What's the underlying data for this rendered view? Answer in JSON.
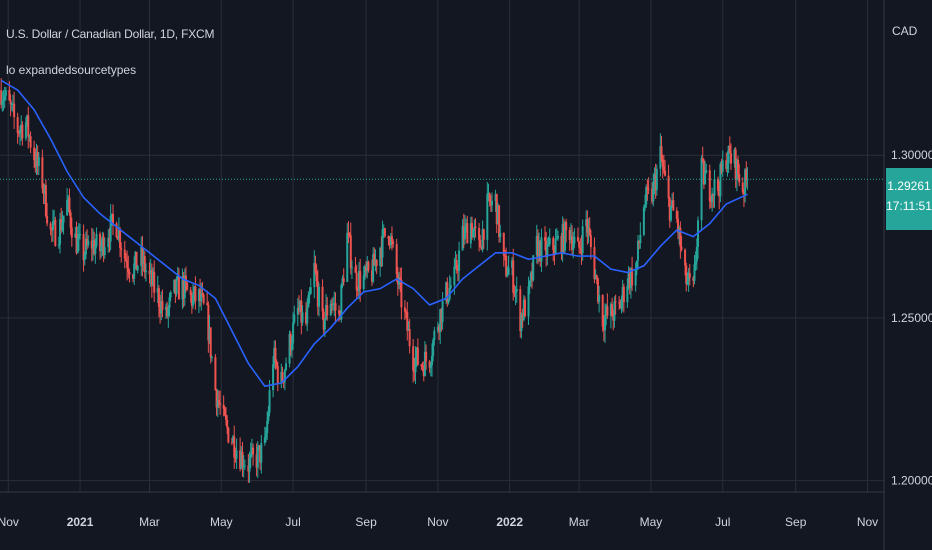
{
  "header": {
    "symbol_title": "U.S. Dollar / Canadian Dollar, 1D, FXCM",
    "indicator_label": "lo expandedsourcetypes",
    "currency": "CAD"
  },
  "last_price": {
    "price": "1.29261",
    "countdown": "17:11:51"
  },
  "colors": {
    "background": "#131722",
    "up": "#26a69a",
    "down": "#ef5350",
    "ma": "#2962ff",
    "grid": "#2a2e39",
    "text": "#d1d4dc"
  },
  "chart_data": {
    "type": "candlestick",
    "symbol": "USDCAD",
    "timeframe": "1D",
    "ylim": [
      1.1965,
      1.3477
    ],
    "y_ticks": [
      "1.30000",
      "1.25000",
      "1.20000"
    ],
    "x_ticks": [
      "Nov",
      "2021",
      "Mar",
      "May",
      "Jul",
      "Sep",
      "Nov",
      "2022",
      "Mar",
      "May",
      "Jul",
      "Sep",
      "Nov"
    ],
    "x_tick_dates": [
      "2020-11-01",
      "2021-01-01",
      "2021-03-01",
      "2021-05-01",
      "2021-07-01",
      "2021-09-01",
      "2021-11-01",
      "2022-01-01",
      "2022-03-01",
      "2022-05-01",
      "2022-07-01",
      "2022-09-01",
      "2022-11-01"
    ],
    "xlim": [
      "2020-10-25",
      "2022-11-15"
    ],
    "last_price": 1.29261,
    "close_path": [
      [
        "2020-10-26",
        1.32
      ],
      [
        "2020-11-02",
        1.315
      ],
      [
        "2020-11-09",
        1.308
      ],
      [
        "2020-11-16",
        1.31
      ],
      [
        "2020-11-23",
        1.3
      ],
      [
        "2020-11-30",
        1.292
      ],
      [
        "2020-12-07",
        1.276
      ],
      [
        "2020-12-14",
        1.277
      ],
      [
        "2020-12-21",
        1.285
      ],
      [
        "2020-12-28",
        1.274
      ],
      [
        "2021-01-04",
        1.27
      ],
      [
        "2021-01-11",
        1.273
      ],
      [
        "2021-01-18",
        1.271
      ],
      [
        "2021-01-25",
        1.277
      ],
      [
        "2021-02-01",
        1.279
      ],
      [
        "2021-02-08",
        1.269
      ],
      [
        "2021-02-15",
        1.265
      ],
      [
        "2021-02-22",
        1.268
      ],
      [
        "2021-03-01",
        1.262
      ],
      [
        "2021-03-08",
        1.257
      ],
      [
        "2021-03-15",
        1.25
      ],
      [
        "2021-03-22",
        1.258
      ],
      [
        "2021-03-29",
        1.26
      ],
      [
        "2021-04-05",
        1.256
      ],
      [
        "2021-04-12",
        1.256
      ],
      [
        "2021-04-19",
        1.25
      ],
      [
        "2021-04-26",
        1.228
      ],
      [
        "2021-05-03",
        1.218
      ],
      [
        "2021-05-10",
        1.213
      ],
      [
        "2021-05-17",
        1.208
      ],
      [
        "2021-05-24",
        1.205
      ],
      [
        "2021-05-31",
        1.207
      ],
      [
        "2021-06-07",
        1.21
      ],
      [
        "2021-06-14",
        1.238
      ],
      [
        "2021-06-21",
        1.23
      ],
      [
        "2021-06-28",
        1.242
      ],
      [
        "2021-07-05",
        1.252
      ],
      [
        "2021-07-12",
        1.248
      ],
      [
        "2021-07-19",
        1.265
      ],
      [
        "2021-07-26",
        1.248
      ],
      [
        "2021-08-02",
        1.256
      ],
      [
        "2021-08-09",
        1.25
      ],
      [
        "2021-08-16",
        1.275
      ],
      [
        "2021-08-23",
        1.262
      ],
      [
        "2021-08-30",
        1.262
      ],
      [
        "2021-09-06",
        1.264
      ],
      [
        "2021-09-13",
        1.272
      ],
      [
        "2021-09-20",
        1.278
      ],
      [
        "2021-09-27",
        1.263
      ],
      [
        "2021-10-04",
        1.25
      ],
      [
        "2021-10-11",
        1.238
      ],
      [
        "2021-10-18",
        1.236
      ],
      [
        "2021-10-25",
        1.238
      ],
      [
        "2021-11-01",
        1.249
      ],
      [
        "2021-11-08",
        1.257
      ],
      [
        "2021-11-15",
        1.262
      ],
      [
        "2021-11-22",
        1.275
      ],
      [
        "2021-11-29",
        1.279
      ],
      [
        "2021-12-06",
        1.271
      ],
      [
        "2021-12-13",
        1.284
      ],
      [
        "2021-12-20",
        1.286
      ],
      [
        "2021-12-27",
        1.266
      ],
      [
        "2022-01-03",
        1.264
      ],
      [
        "2022-01-10",
        1.25
      ],
      [
        "2022-01-17",
        1.256
      ],
      [
        "2022-01-24",
        1.272
      ],
      [
        "2022-01-31",
        1.27
      ],
      [
        "2022-02-07",
        1.272
      ],
      [
        "2022-02-14",
        1.274
      ],
      [
        "2022-02-21",
        1.277
      ],
      [
        "2022-02-28",
        1.27
      ],
      [
        "2022-03-07",
        1.28
      ],
      [
        "2022-03-14",
        1.265
      ],
      [
        "2022-03-21",
        1.25
      ],
      [
        "2022-03-28",
        1.251
      ],
      [
        "2022-04-04",
        1.253
      ],
      [
        "2022-04-11",
        1.262
      ],
      [
        "2022-04-18",
        1.264
      ],
      [
        "2022-04-25",
        1.285
      ],
      [
        "2022-05-02",
        1.288
      ],
      [
        "2022-05-09",
        1.3
      ],
      [
        "2022-05-16",
        1.285
      ],
      [
        "2022-05-23",
        1.28
      ],
      [
        "2022-05-30",
        1.262
      ],
      [
        "2022-06-06",
        1.258
      ],
      [
        "2022-06-13",
        1.295
      ],
      [
        "2022-06-20",
        1.29
      ],
      [
        "2022-06-27",
        1.29
      ],
      [
        "2022-07-04",
        1.3
      ],
      [
        "2022-07-11",
        1.298
      ],
      [
        "2022-07-18",
        1.29
      ],
      [
        "2022-07-22",
        1.2926
      ]
    ],
    "ma_path": [
      [
        "2020-10-26",
        1.323
      ],
      [
        "2020-11-09",
        1.32
      ],
      [
        "2020-11-23",
        1.314
      ],
      [
        "2020-12-07",
        1.305
      ],
      [
        "2020-12-21",
        1.295
      ],
      [
        "2021-01-04",
        1.287
      ],
      [
        "2021-01-18",
        1.282
      ],
      [
        "2021-02-01",
        1.278
      ],
      [
        "2021-02-15",
        1.274
      ],
      [
        "2021-03-01",
        1.27
      ],
      [
        "2021-03-15",
        1.266
      ],
      [
        "2021-03-29",
        1.262
      ],
      [
        "2021-04-12",
        1.26
      ],
      [
        "2021-04-26",
        1.256
      ],
      [
        "2021-05-10",
        1.246
      ],
      [
        "2021-05-24",
        1.236
      ],
      [
        "2021-06-07",
        1.229
      ],
      [
        "2021-06-21",
        1.23
      ],
      [
        "2021-07-05",
        1.235
      ],
      [
        "2021-07-19",
        1.242
      ],
      [
        "2021-08-02",
        1.247
      ],
      [
        "2021-08-16",
        1.253
      ],
      [
        "2021-08-30",
        1.258
      ],
      [
        "2021-09-13",
        1.259
      ],
      [
        "2021-09-27",
        1.262
      ],
      [
        "2021-10-11",
        1.259
      ],
      [
        "2021-10-25",
        1.254
      ],
      [
        "2021-11-08",
        1.256
      ],
      [
        "2021-11-22",
        1.262
      ],
      [
        "2021-12-06",
        1.266
      ],
      [
        "2021-12-20",
        1.27
      ],
      [
        "2022-01-03",
        1.27
      ],
      [
        "2022-01-17",
        1.268
      ],
      [
        "2022-01-31",
        1.269
      ],
      [
        "2022-02-14",
        1.27
      ],
      [
        "2022-02-28",
        1.269
      ],
      [
        "2022-03-14",
        1.269
      ],
      [
        "2022-03-28",
        1.265
      ],
      [
        "2022-04-11",
        1.264
      ],
      [
        "2022-04-25",
        1.266
      ],
      [
        "2022-05-09",
        1.272
      ],
      [
        "2022-05-23",
        1.277
      ],
      [
        "2022-06-06",
        1.275
      ],
      [
        "2022-06-20",
        1.279
      ],
      [
        "2022-07-04",
        1.285
      ],
      [
        "2022-07-22",
        1.288
      ]
    ]
  }
}
